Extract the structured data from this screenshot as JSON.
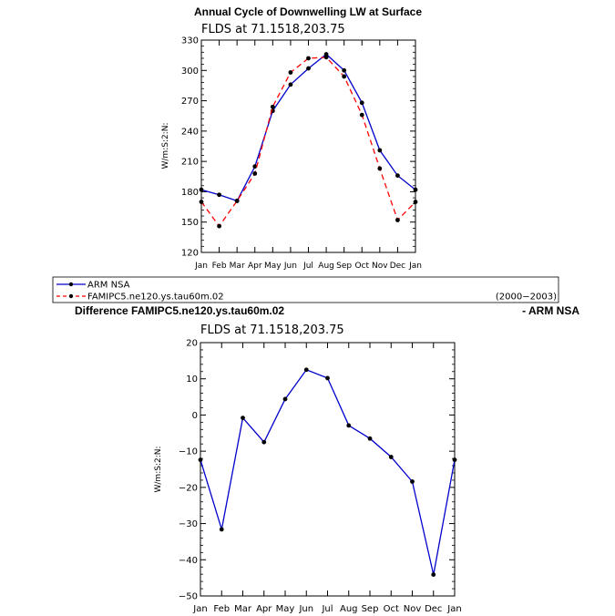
{
  "chart_data": [
    {
      "type": "line",
      "title": "Annual Cycle of Downwelling LW at Surface",
      "subtitle": "FLDS at 71.1518,203.75",
      "ylabel": "W/m:S:2:N:",
      "ylim": [
        120,
        330
      ],
      "yticks": [
        120,
        150,
        180,
        210,
        240,
        270,
        300,
        330
      ],
      "categories": [
        "Jan",
        "Feb",
        "Mar",
        "Apr",
        "May",
        "Jun",
        "Jul",
        "Aug",
        "Sep",
        "Oct",
        "Nov",
        "Dec",
        "Jan"
      ],
      "series": [
        {
          "name": "ARM NSA",
          "color": "#0000cc",
          "dash": "solid",
          "values": [
            182,
            177,
            171,
            205,
            260,
            286,
            302,
            316,
            300,
            268,
            221,
            196,
            182
          ]
        },
        {
          "name": "FAMIPC5.ne120.ys.tau60m.02",
          "color": "#ff0000",
          "dash": "dashed",
          "values": [
            170,
            146,
            171,
            198,
            264,
            298,
            312,
            313,
            294,
            256,
            203,
            152,
            170
          ]
        }
      ]
    },
    {
      "type": "line",
      "title": "Difference FAMIPC5.ne120.ys.tau60m.02",
      "title_right": "- ARM NSA",
      "subtitle": "FLDS at 71.1518,203.75",
      "ylabel": "W/m:S:2:N:",
      "ylim": [
        -50,
        20
      ],
      "yticks": [
        -50,
        -40,
        -30,
        -20,
        -10,
        0,
        10,
        20
      ],
      "categories": [
        "Jan",
        "Feb",
        "Mar",
        "Apr",
        "May",
        "Jun",
        "Jul",
        "Aug",
        "Sep",
        "Oct",
        "Nov",
        "Dec",
        "Jan"
      ],
      "series": [
        {
          "name": "",
          "color": "#0000cc",
          "dash": "solid",
          "values": [
            -12.4,
            -31.6,
            -0.8,
            -7.5,
            4.4,
            12.5,
            10.2,
            -2.9,
            -6.5,
            -11.6,
            -18.4,
            -44.1,
            -12.4
          ]
        }
      ]
    }
  ],
  "legend": {
    "entries": [
      "ARM NSA",
      "FAMIPC5.ne120.ys.tau60m.02"
    ],
    "period": "(2000−2003)"
  }
}
